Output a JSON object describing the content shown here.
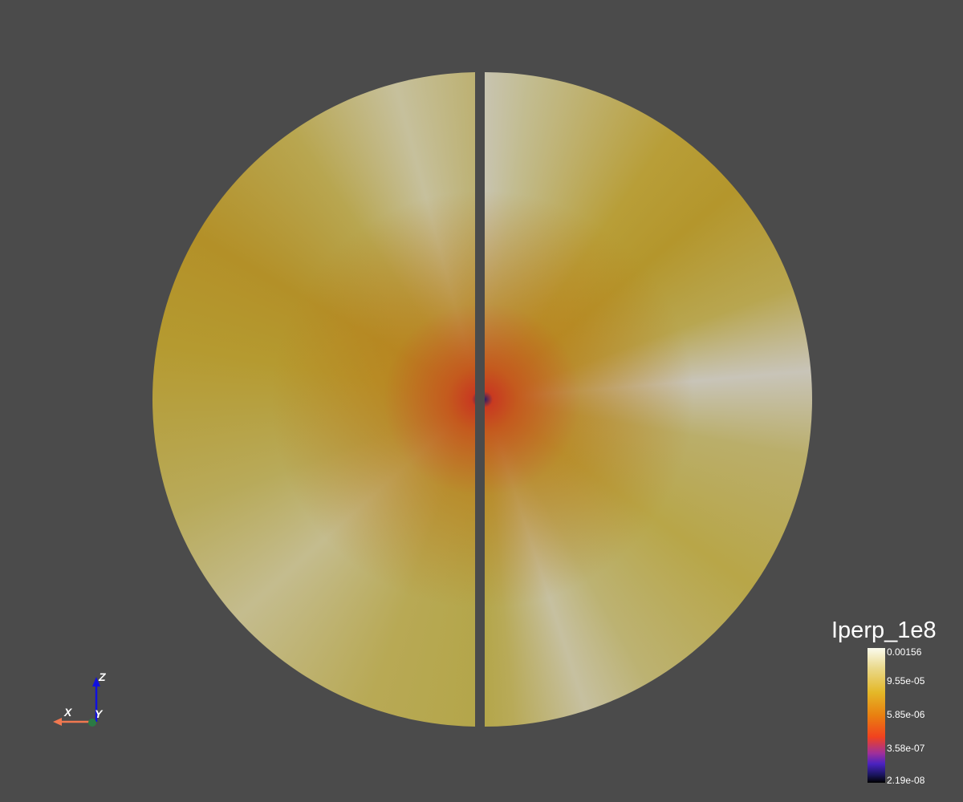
{
  "view": {
    "background": "#4b4b4b"
  },
  "scalar_bar": {
    "title": "Iperp_1e8",
    "colormap": "Inferno-like (black-purple-red-orange-yellow-white)",
    "scale": "log",
    "ticks": [
      "0.00156",
      "9.55e-05",
      "5.85e-06",
      "3.58e-07",
      "2.19e-08"
    ]
  },
  "orientation_axes": {
    "x_label": "X",
    "y_label": "Y",
    "z_label": "Z",
    "x_color": "#f07850",
    "y_color": "#2a8a4a",
    "z_color": "#1010e0"
  }
}
